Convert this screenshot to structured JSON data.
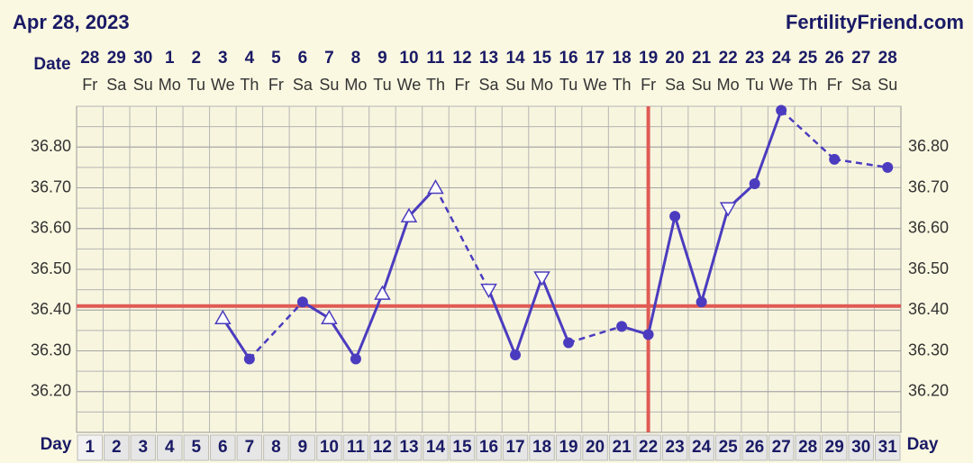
{
  "header": {
    "date": "Apr 28, 2023",
    "site": "FertilityFriend.com"
  },
  "chart_data": {
    "type": "line",
    "date_label": "Date",
    "day_label": "Day",
    "dates": [
      28,
      29,
      30,
      1,
      2,
      3,
      4,
      5,
      6,
      7,
      8,
      9,
      10,
      11,
      12,
      13,
      14,
      15,
      16,
      17,
      18,
      19,
      20,
      21,
      22,
      23,
      24,
      25,
      26,
      27,
      28
    ],
    "weekdays": [
      "Fr",
      "Sa",
      "Su",
      "Mo",
      "Tu",
      "We",
      "Th",
      "Fr",
      "Sa",
      "Su",
      "Mo",
      "Tu",
      "We",
      "Th",
      "Fr",
      "Sa",
      "Su",
      "Mo",
      "Tu",
      "We",
      "Th",
      "Fr",
      "Sa",
      "Su",
      "Mo",
      "Tu",
      "We",
      "Th",
      "Fr",
      "Sa",
      "Su"
    ],
    "categories": [
      1,
      2,
      3,
      4,
      5,
      6,
      7,
      8,
      9,
      10,
      11,
      12,
      13,
      14,
      15,
      16,
      17,
      18,
      19,
      20,
      21,
      22,
      23,
      24,
      25,
      26,
      27,
      28,
      29,
      30,
      31
    ],
    "series": [
      {
        "color": "#4b3cbf",
        "values": [
          null,
          null,
          null,
          null,
          null,
          36.38,
          36.28,
          null,
          36.42,
          36.38,
          36.28,
          36.44,
          36.63,
          36.7,
          null,
          36.45,
          36.29,
          36.48,
          36.32,
          null,
          36.36,
          36.34,
          36.63,
          36.42,
          36.65,
          36.71,
          36.89,
          null,
          36.77,
          null,
          36.75
        ],
        "markers": [
          null,
          null,
          null,
          null,
          null,
          "triangle-up",
          "circle",
          null,
          "circle",
          "triangle-up",
          "circle",
          "triangle-up",
          "triangle-up",
          "triangle-up",
          null,
          "triangle-down",
          "circle",
          "triangle-down",
          "circle",
          null,
          "circle",
          "circle",
          "circle",
          "circle",
          "triangle-down",
          "circle",
          "circle",
          null,
          "circle",
          null,
          "circle"
        ]
      }
    ],
    "ylim": [
      36.1,
      36.9
    ],
    "yticks": [
      {
        "value": 36.2,
        "label": "36.20"
      },
      {
        "value": 36.3,
        "label": "36.30"
      },
      {
        "value": 36.4,
        "label": "36.40"
      },
      {
        "value": 36.5,
        "label": "36.50"
      },
      {
        "value": 36.6,
        "label": "36.60"
      },
      {
        "value": 36.7,
        "label": "36.70"
      },
      {
        "value": 36.8,
        "label": "36.80"
      }
    ],
    "coverline": 36.41,
    "ovulation_day": 22,
    "marker_color": "#e05a55",
    "grid": true
  }
}
